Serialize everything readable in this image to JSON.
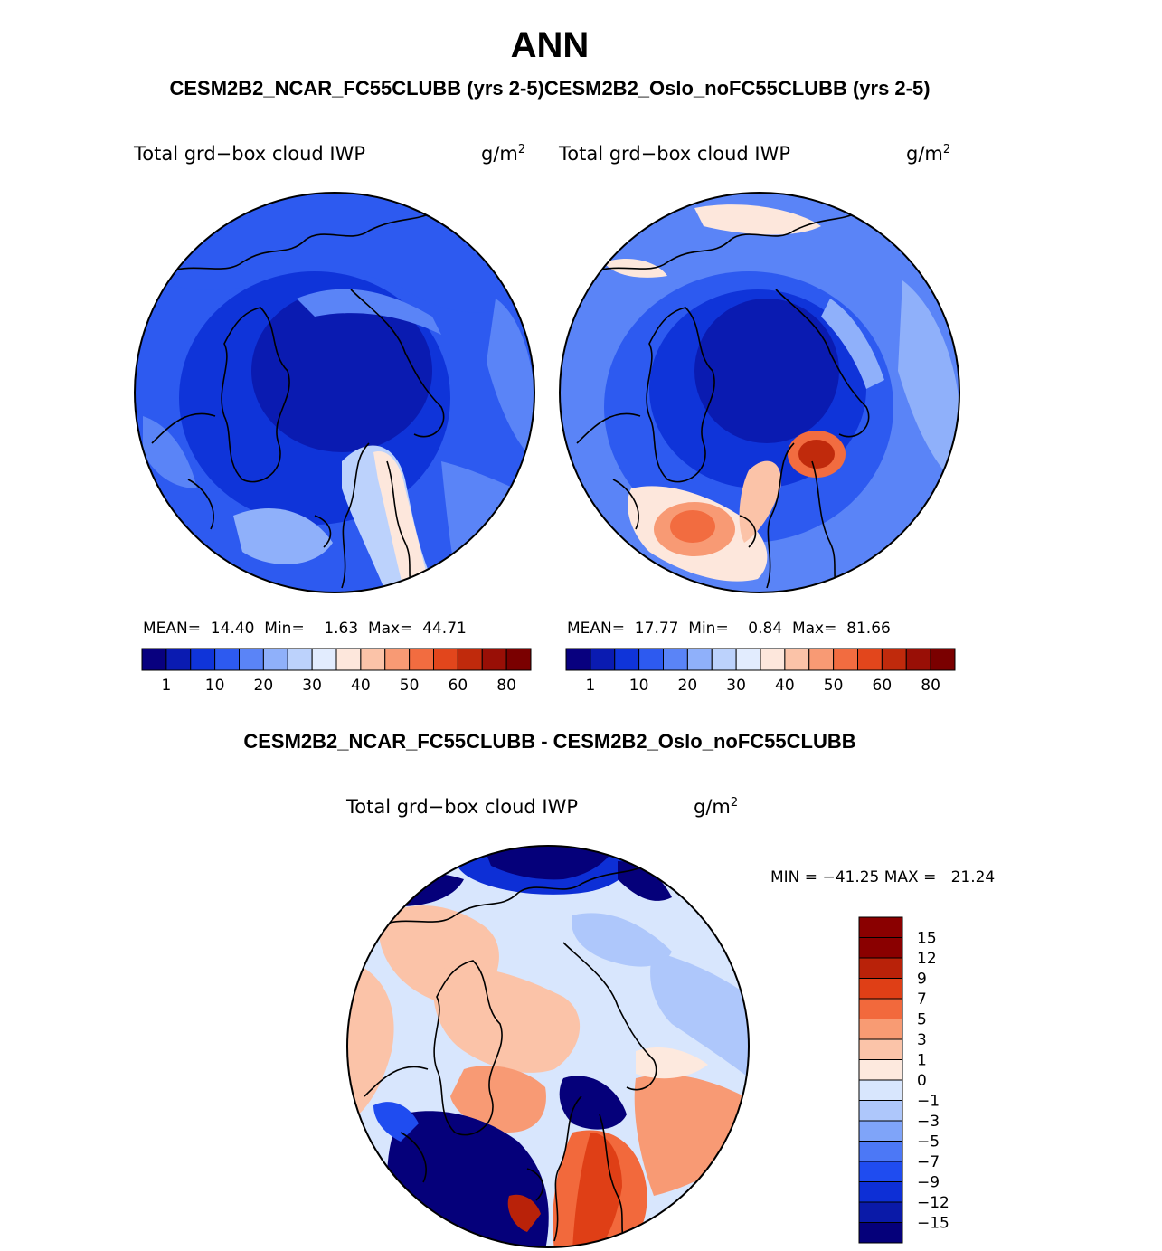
{
  "title": "ANN",
  "subtitle": "CESM2B2_NCAR_FC55CLUBB (yrs 2-5)CESM2B2_Oslo_noFC55CLUBB (yrs 2-5)",
  "diff_title": "CESM2B2_NCAR_FC55CLUBB - CESM2B2_Oslo_noFC55CLUBB",
  "colors": {
    "seq": [
      "#08007f",
      "#0a1bb1",
      "#0f34d9",
      "#2d5af0",
      "#5a84f7",
      "#8fb0fa",
      "#bcd2fc",
      "#e2ecfe",
      "#fde7dc",
      "#fbc3a8",
      "#f89a74",
      "#f26c40",
      "#e2461c",
      "#c02a0c",
      "#990f06",
      "#7a0000"
    ],
    "diff": [
      "#05007a",
      "#0a1aa8",
      "#0d2fd6",
      "#1f4cf0",
      "#4c78f6",
      "#7fa4f9",
      "#aec7fb",
      "#d8e6fd",
      "#fde9de",
      "#fbc4a9",
      "#f89b73",
      "#f2693c",
      "#df3f16",
      "#b92209",
      "#8a0000"
    ]
  },
  "panels": [
    {
      "label": "Total grd−box cloud IWP",
      "units": "g/m",
      "units_sup": "2",
      "stats": "MEAN=  14.40  Min=    1.63  Max=  44.71",
      "colorbar_ticks": [
        "1",
        "10",
        "20",
        "30",
        "40",
        "50",
        "60",
        "80"
      ]
    },
    {
      "label": "Total grd−box cloud IWP",
      "units": "g/m",
      "units_sup": "2",
      "stats": "MEAN=  17.77  Min=    0.84  Max=  81.66",
      "colorbar_ticks": [
        "1",
        "10",
        "20",
        "30",
        "40",
        "50",
        "60",
        "80"
      ]
    },
    {
      "label": "Total grd−box cloud IWP",
      "units": "g/m",
      "units_sup": "2",
      "stats": "MIN = −41.25 MAX =   21.24",
      "colorbar_ticks": [
        "15",
        "12",
        "9",
        "7",
        "5",
        "3",
        "1",
        "0",
        "−1",
        "−3",
        "−5",
        "−7",
        "−9",
        "−12",
        "−15"
      ]
    }
  ],
  "chart_data": [
    {
      "type": "heatmap",
      "projection": "north polar stereographic",
      "title": "CESM2B2_NCAR_FC55CLUBB (yrs 2-5)",
      "variable": "Total grd-box cloud IWP",
      "units": "g/m2",
      "mean": 14.4,
      "min": 1.63,
      "max": 44.71,
      "contour_levels": [
        1,
        5,
        10,
        15,
        20,
        25,
        30,
        35,
        40,
        45,
        50,
        55,
        60,
        70,
        80
      ]
    },
    {
      "type": "heatmap",
      "projection": "north polar stereographic",
      "title": "CESM2B2_Oslo_noFC55CLUBB (yrs 2-5)",
      "variable": "Total grd-box cloud IWP",
      "units": "g/m2",
      "mean": 17.77,
      "min": 0.84,
      "max": 81.66,
      "contour_levels": [
        1,
        5,
        10,
        15,
        20,
        25,
        30,
        35,
        40,
        45,
        50,
        55,
        60,
        70,
        80
      ]
    },
    {
      "type": "heatmap",
      "projection": "north polar stereographic",
      "title": "CESM2B2_NCAR_FC55CLUBB - CESM2B2_Oslo_noFC55CLUBB",
      "variable": "Total grd-box cloud IWP",
      "units": "g/m2",
      "min": -41.25,
      "max": 21.24,
      "contour_levels": [
        -15,
        -12,
        -9,
        -7,
        -5,
        -3,
        -1,
        0,
        1,
        3,
        5,
        7,
        9,
        12,
        15
      ]
    }
  ]
}
